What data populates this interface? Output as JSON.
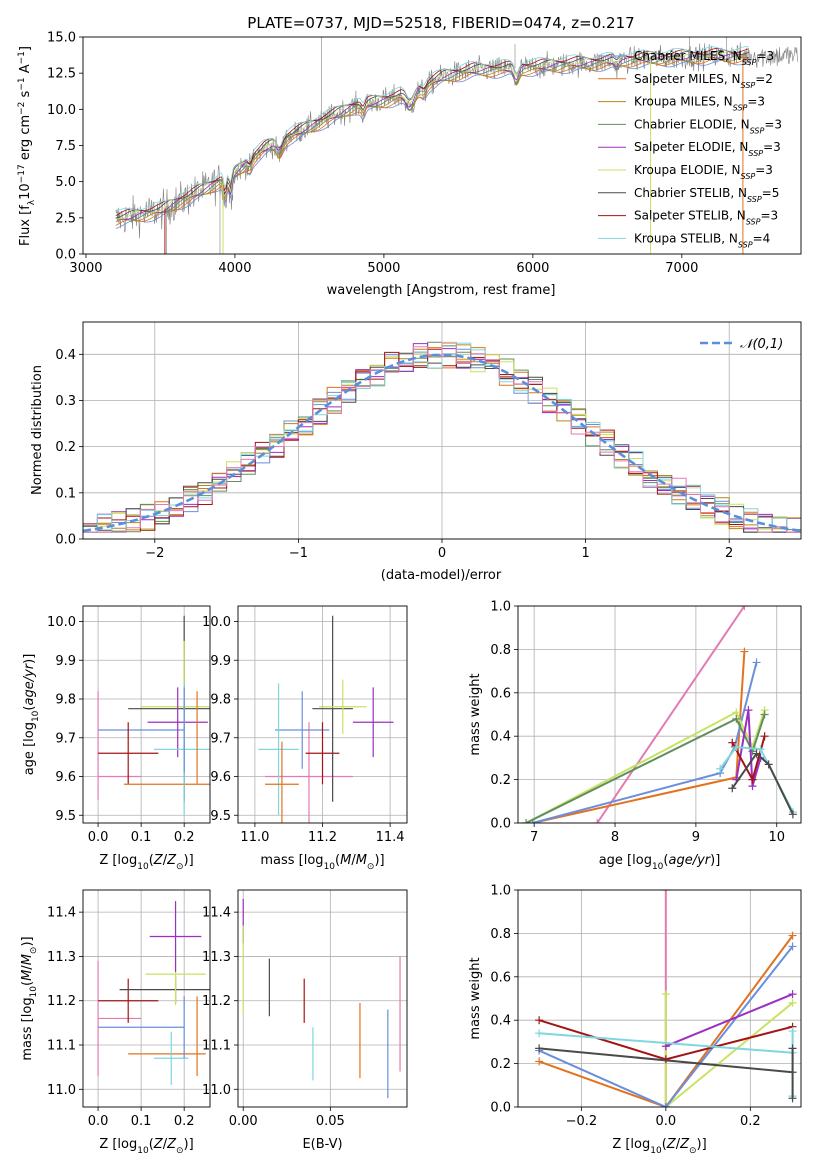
{
  "colors": {
    "c_miles": "#6a8fdc",
    "s_miles": "#e2721f",
    "k_miles": "#b1861e",
    "c_elodie": "#5f8f5f",
    "s_elodie": "#9b2fc1",
    "k_elodie": "#c8e264",
    "c_stelib": "#4a4a4a",
    "s_stelib": "#a51414",
    "k_stelib": "#7fd6de",
    "pink": "#e27bb3",
    "data": "#808080",
    "gauss": "#5a8fdc",
    "grid": "#b0b0b0"
  },
  "chart_data": [
    {
      "id": "spectrum",
      "type": "line",
      "title": "PLATE=0737, MJD=52518, FIBERID=0474, z=0.217",
      "xlabel": "wavelength [Angstrom, rest frame]",
      "ylabel": "Flux [f_λ10^-17 erg cm^-2 s^-1 A^-1]",
      "xlim": [
        2980,
        7800
      ],
      "ylim": [
        0,
        15
      ],
      "xticks": [
        "3000",
        "4000",
        "5000",
        "6000",
        "7000"
      ],
      "yticks": [
        "0.0",
        "2.5",
        "5.0",
        "7.5",
        "10.0",
        "12.5",
        "15.0"
      ],
      "grid": false,
      "legend_position": "top-right",
      "continuum": {
        "x": [
          3200,
          3500,
          3800,
          4000,
          4200,
          4500,
          4800,
          5000,
          5200,
          5400,
          5600,
          5800,
          6000,
          6200,
          6400,
          6600,
          6800,
          7000,
          7200,
          7400
        ],
        "y": [
          2.4,
          3.0,
          4.5,
          5.6,
          7.3,
          8.8,
          10.2,
          10.6,
          11.2,
          12.3,
          12.7,
          12.8,
          12.9,
          13.1,
          13.2,
          13.4,
          13.5,
          13.6,
          13.7,
          13.7
        ]
      },
      "series": [
        {
          "name": "Chabrier MILES, N_SSP=3",
          "key": "c_miles"
        },
        {
          "name": "Salpeter MILES, N_SSP=2",
          "key": "s_miles"
        },
        {
          "name": "Kroupa MILES, N_SSP=3",
          "key": "k_miles"
        },
        {
          "name": "Chabrier ELODIE, N_SSP=3",
          "key": "c_elodie"
        },
        {
          "name": "Salpeter ELODIE, N_SSP=3",
          "key": "s_elodie"
        },
        {
          "name": "Kroupa ELODIE, N_SSP=3",
          "key": "k_elodie"
        },
        {
          "name": "Chabrier STELIB, N_SSP=5",
          "key": "c_stelib"
        },
        {
          "name": "Salpeter STELIB, N_SSP=3",
          "key": "s_stelib"
        },
        {
          "name": "Kroupa STELIB, N_SSP=4",
          "key": "k_stelib"
        }
      ]
    },
    {
      "id": "residuals",
      "type": "area",
      "xlabel": "(data-model)/error",
      "ylabel": "Normed distribution",
      "xlim": [
        -2.5,
        2.5
      ],
      "ylim": [
        0,
        0.47
      ],
      "xticks": [
        "−2",
        "−1",
        "0",
        "1",
        "2"
      ],
      "yticks": [
        "0.0",
        "0.1",
        "0.2",
        "0.3",
        "0.4"
      ],
      "grid": true,
      "legend": "𝒩(0,1)",
      "legend_position": "top-right",
      "bin_width": 0.1
    },
    {
      "id": "age_vs_Z",
      "type": "scatter",
      "xlabel": "Z [log10(Z/Z⊙)]",
      "ylabel": "age  [log10(age/yr)]",
      "xlim": [
        -0.035,
        0.26
      ],
      "ylim": [
        9.48,
        10.04
      ],
      "xticks": [
        "0.0",
        "0.1",
        "0.2"
      ],
      "yticks": [
        "9.5",
        "9.6",
        "9.7",
        "9.8",
        "9.9",
        "10.0"
      ],
      "grid": true,
      "points": [
        {
          "key": "pink",
          "x": 0.0,
          "y": 9.68,
          "xerr": 0.0,
          "yerr": 0.14
        },
        {
          "key": "pink",
          "x": 0.05,
          "y": 9.6,
          "xerr": 0.05,
          "yerr": 0.0
        },
        {
          "key": "c_miles",
          "x": 0.1,
          "y": 9.72,
          "xerr": 0.1,
          "yerr": 0.0
        },
        {
          "key": "s_stelib",
          "x": 0.07,
          "y": 9.66,
          "xerr": 0.07,
          "yerr": 0.08
        },
        {
          "key": "s_miles",
          "x": 0.16,
          "y": 9.58,
          "xerr": 0.1,
          "yerr": 0.0
        },
        {
          "key": "c_stelib",
          "x": 0.2,
          "y": 9.775,
          "xerr": 0.13,
          "yerr": 0.24
        },
        {
          "key": "k_elodie",
          "x": 0.2,
          "y": 9.78,
          "xerr": 0.1,
          "yerr": 0.17
        },
        {
          "key": "s_elodie",
          "x": 0.185,
          "y": 9.74,
          "xerr": 0.07,
          "yerr": 0.09
        },
        {
          "key": "k_stelib",
          "x": 0.2,
          "y": 9.67,
          "xerr": 0.07,
          "yerr": 0.17
        },
        {
          "key": "c_miles",
          "x": 0.2,
          "y": 9.72,
          "xerr": 0.0,
          "yerr": 0.11
        },
        {
          "key": "s_miles",
          "x": 0.23,
          "y": 9.7,
          "xerr": 0.0,
          "yerr": 0.12
        }
      ]
    },
    {
      "id": "age_vs_mass",
      "type": "scatter",
      "xlabel": "mass [log10(M/M⊙)]",
      "ylabel": "",
      "xlim": [
        10.95,
        11.45
      ],
      "ylim": [
        9.48,
        10.04
      ],
      "xticks": [
        "11.0",
        "11.2",
        "11.4"
      ],
      "yticks": [
        "9.5",
        "9.6",
        "9.7",
        "9.8",
        "9.9",
        "10.0"
      ],
      "grid": true,
      "points": [
        {
          "key": "pink",
          "x": 11.16,
          "y": 9.6,
          "xerr": 0.13,
          "yerr": 0.14
        },
        {
          "key": "c_miles",
          "x": 11.14,
          "y": 9.72,
          "xerr": 0.08,
          "yerr": 0.1
        },
        {
          "key": "k_stelib",
          "x": 11.07,
          "y": 9.67,
          "xerr": 0.06,
          "yerr": 0.17
        },
        {
          "key": "s_miles",
          "x": 11.08,
          "y": 9.58,
          "xerr": 0.05,
          "yerr": 0.11
        },
        {
          "key": "s_stelib",
          "x": 11.2,
          "y": 9.66,
          "xerr": 0.05,
          "yerr": 0.08
        },
        {
          "key": "c_stelib",
          "x": 11.23,
          "y": 9.775,
          "xerr": 0.06,
          "yerr": 0.24
        },
        {
          "key": "k_elodie",
          "x": 11.26,
          "y": 9.78,
          "xerr": 0.07,
          "yerr": 0.07
        },
        {
          "key": "s_elodie",
          "x": 11.35,
          "y": 9.74,
          "xerr": 0.06,
          "yerr": 0.09
        }
      ]
    },
    {
      "id": "weight_vs_age",
      "type": "line",
      "xlabel": "age  [log10(age/yr)]",
      "ylabel": "mass weight",
      "xlim": [
        6.8,
        10.3
      ],
      "ylim": [
        0,
        1.0
      ],
      "xticks": [
        "7",
        "8",
        "9",
        "10"
      ],
      "yticks": [
        "0.0",
        "0.2",
        "0.4",
        "0.6",
        "0.8",
        "1.0"
      ],
      "grid": true,
      "series": [
        {
          "key": "pink",
          "x": [
            7.78,
            9.6
          ],
          "y": [
            0.0,
            1.0
          ]
        },
        {
          "key": "s_miles",
          "x": [
            6.98,
            9.5,
            9.6
          ],
          "y": [
            0.0,
            0.21,
            0.79
          ]
        },
        {
          "key": "c_miles",
          "x": [
            6.98,
            9.3,
            9.48,
            9.75
          ],
          "y": [
            0.0,
            0.23,
            0.35,
            0.74
          ]
        },
        {
          "key": "k_elodie",
          "x": [
            6.9,
            9.5,
            9.7,
            9.85
          ],
          "y": [
            0.0,
            0.51,
            0.35,
            0.52
          ]
        },
        {
          "key": "c_elodie",
          "x": [
            6.9,
            9.5,
            9.7,
            9.85
          ],
          "y": [
            0.0,
            0.48,
            0.33,
            0.5
          ]
        },
        {
          "key": "s_elodie",
          "x": [
            9.5,
            9.65,
            9.7,
            9.8
          ],
          "y": [
            0.2,
            0.52,
            0.17,
            0.3
          ]
        },
        {
          "key": "s_stelib",
          "x": [
            9.45,
            9.7,
            9.85
          ],
          "y": [
            0.37,
            0.2,
            0.4
          ]
        },
        {
          "key": "k_stelib",
          "x": [
            9.3,
            9.5,
            9.8,
            10.2
          ],
          "y": [
            0.25,
            0.35,
            0.34,
            0.05
          ]
        },
        {
          "key": "c_stelib",
          "x": [
            9.45,
            9.75,
            9.9,
            10.2
          ],
          "y": [
            0.16,
            0.32,
            0.27,
            0.04
          ]
        }
      ]
    },
    {
      "id": "mass_vs_Z",
      "type": "scatter",
      "xlabel": "Z [log10(Z/Z⊙)]",
      "ylabel": "mass [log10(M/M⊙)]",
      "xlim": [
        -0.035,
        0.26
      ],
      "ylim": [
        10.96,
        11.45
      ],
      "xticks": [
        "0.0",
        "0.1",
        "0.2"
      ],
      "yticks": [
        "11.0",
        "11.1",
        "11.2",
        "11.3",
        "11.4"
      ],
      "grid": true,
      "points": [
        {
          "key": "pink",
          "x": 0.0,
          "y": 11.16,
          "xerr": 0.0,
          "yerr": 0.13
        },
        {
          "key": "pink",
          "x": 0.05,
          "y": 11.16,
          "xerr": 0.05,
          "yerr": 0.0
        },
        {
          "key": "c_miles",
          "x": 0.1,
          "y": 11.14,
          "xerr": 0.1,
          "yerr": 0.0
        },
        {
          "key": "s_stelib",
          "x": 0.07,
          "y": 11.2,
          "xerr": 0.07,
          "yerr": 0.05
        },
        {
          "key": "s_miles",
          "x": 0.16,
          "y": 11.08,
          "xerr": 0.09,
          "yerr": 0.0
        },
        {
          "key": "c_stelib",
          "x": 0.18,
          "y": 11.225,
          "xerr": 0.13,
          "yerr": 0.03
        },
        {
          "key": "k_elodie",
          "x": 0.18,
          "y": 11.26,
          "xerr": 0.07,
          "yerr": 0.07
        },
        {
          "key": "s_elodie",
          "x": 0.18,
          "y": 11.345,
          "xerr": 0.06,
          "yerr": 0.08
        },
        {
          "key": "k_stelib",
          "x": 0.17,
          "y": 11.07,
          "xerr": 0.04,
          "yerr": 0.06
        },
        {
          "key": "c_miles",
          "x": 0.2,
          "y": 11.14,
          "xerr": 0.0,
          "yerr": 0.07
        },
        {
          "key": "s_miles",
          "x": 0.23,
          "y": 11.12,
          "xerr": 0.0,
          "yerr": 0.09
        }
      ]
    },
    {
      "id": "mass_vs_ebv",
      "type": "scatter",
      "xlabel": "E(B-V)",
      "ylabel": "",
      "xlim": [
        -0.003,
        0.094
      ],
      "ylim": [
        10.96,
        11.45
      ],
      "xticks": [
        "0.00",
        "0.05"
      ],
      "yticks": [
        "11.0",
        "11.1",
        "11.2",
        "11.3",
        "11.4"
      ],
      "grid": true,
      "points": [
        {
          "key": "s_elodie",
          "x": 0.0,
          "y": 11.38,
          "xerr": 0.0,
          "yerr": 0.05
        },
        {
          "key": "k_elodie",
          "x": 0.0,
          "y": 11.27,
          "xerr": 0.0,
          "yerr": 0.1
        },
        {
          "key": "c_stelib",
          "x": 0.015,
          "y": 11.23,
          "xerr": 0.0,
          "yerr": 0.065
        },
        {
          "key": "s_stelib",
          "x": 0.035,
          "y": 11.2,
          "xerr": 0.0,
          "yerr": 0.05
        },
        {
          "key": "k_stelib",
          "x": 0.04,
          "y": 11.08,
          "xerr": 0.0,
          "yerr": 0.06
        },
        {
          "key": "s_miles",
          "x": 0.067,
          "y": 11.11,
          "xerr": 0.0,
          "yerr": 0.085
        },
        {
          "key": "c_miles",
          "x": 0.083,
          "y": 11.08,
          "xerr": 0.0,
          "yerr": 0.1
        },
        {
          "key": "pink",
          "x": 0.09,
          "y": 11.17,
          "xerr": 0.0,
          "yerr": 0.13
        }
      ]
    },
    {
      "id": "weight_vs_Z",
      "type": "line",
      "xlabel": "Z [log10(Z/Z⊙)]",
      "ylabel": "mass weight",
      "xlim": [
        -0.35,
        0.32
      ],
      "ylim": [
        0,
        1.0
      ],
      "xticks": [
        "−0.2",
        "0.0",
        "0.2"
      ],
      "yticks": [
        "0.0",
        "0.2",
        "0.4",
        "0.6",
        "0.8",
        "1.0"
      ],
      "grid": true,
      "series": [
        {
          "key": "pink",
          "x": [
            0.0,
            0.0
          ],
          "y": [
            0.0,
            1.0
          ]
        },
        {
          "key": "k_elodie",
          "x": [
            0.0,
            0.0,
            0.3
          ],
          "y": [
            0.52,
            0.0,
            0.48
          ]
        },
        {
          "key": "s_miles",
          "x": [
            -0.3,
            0.0,
            0.3
          ],
          "y": [
            0.21,
            0.0,
            0.79
          ]
        },
        {
          "key": "c_miles",
          "x": [
            -0.3,
            0.0,
            0.3
          ],
          "y": [
            0.26,
            0.0,
            0.74
          ]
        },
        {
          "key": "s_elodie",
          "x": [
            0.0,
            0.3
          ],
          "y": [
            0.28,
            0.52
          ]
        },
        {
          "key": "s_stelib",
          "x": [
            -0.3,
            0.0,
            0.3
          ],
          "y": [
            0.4,
            0.22,
            0.37
          ]
        },
        {
          "key": "k_stelib",
          "x": [
            -0.3,
            0.3
          ],
          "y": [
            0.34,
            0.25
          ]
        },
        {
          "key": "c_stelib",
          "x": [
            -0.3,
            0.3
          ],
          "y": [
            0.27,
            0.16
          ]
        },
        {
          "key": "k_stelib",
          "x": [
            0.3,
            0.3
          ],
          "y": [
            0.05,
            0.35
          ]
        },
        {
          "key": "c_stelib",
          "x": [
            0.3,
            0.3
          ],
          "y": [
            0.04,
            0.27
          ]
        }
      ]
    }
  ]
}
